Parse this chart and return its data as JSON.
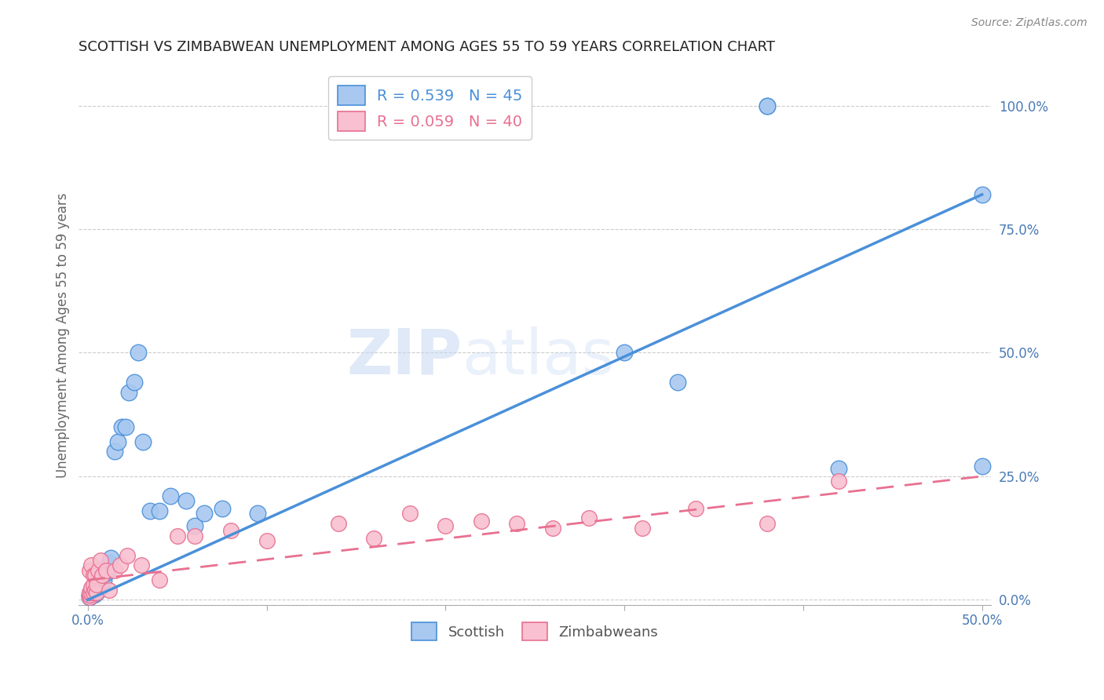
{
  "title": "SCOTTISH VS ZIMBABWEAN UNEMPLOYMENT AMONG AGES 55 TO 59 YEARS CORRELATION CHART",
  "source": "Source: ZipAtlas.com",
  "ylabel": "Unemployment Among Ages 55 to 59 years",
  "xlim": [
    -0.005,
    0.505
  ],
  "ylim": [
    -0.01,
    1.08
  ],
  "xticks": [
    0.0,
    0.1,
    0.2,
    0.3,
    0.4,
    0.5
  ],
  "xtick_labels": [
    "0.0%",
    "",
    "",
    "",
    "",
    "50.0%"
  ],
  "yticks": [
    0.0,
    0.25,
    0.5,
    0.75,
    1.0
  ],
  "ytick_labels": [
    "0.0%",
    "25.0%",
    "50.0%",
    "75.0%",
    "100.0%"
  ],
  "scottish_color": "#a8c8f0",
  "zimbabwean_color": "#f8c0d0",
  "trendline_blue": "#4a90d9",
  "trendline_pink": "#e87090",
  "watermark": "ZIPatlas",
  "watermark_color": "#b8ccec",
  "legend_r_scottish": "R = 0.539",
  "legend_n_scottish": "N = 45",
  "legend_r_zimbabwean": "R = 0.059",
  "legend_n_zimbabwean": "N = 40",
  "scottish_x": [
    0.001,
    0.001,
    0.001,
    0.002,
    0.002,
    0.002,
    0.003,
    0.003,
    0.003,
    0.004,
    0.004,
    0.005,
    0.005,
    0.006,
    0.006,
    0.007,
    0.008,
    0.009,
    0.01,
    0.011,
    0.012,
    0.013,
    0.015,
    0.017,
    0.019,
    0.021,
    0.023,
    0.026,
    0.028,
    0.031,
    0.035,
    0.04,
    0.046,
    0.055,
    0.06,
    0.065,
    0.075,
    0.095,
    0.3,
    0.33,
    0.38,
    0.38,
    0.42,
    0.5,
    0.5
  ],
  "scottish_y": [
    0.005,
    0.008,
    0.012,
    0.01,
    0.015,
    0.02,
    0.01,
    0.018,
    0.025,
    0.012,
    0.022,
    0.015,
    0.025,
    0.02,
    0.03,
    0.028,
    0.035,
    0.04,
    0.055,
    0.06,
    0.075,
    0.085,
    0.3,
    0.32,
    0.35,
    0.35,
    0.42,
    0.44,
    0.5,
    0.32,
    0.18,
    0.18,
    0.21,
    0.2,
    0.15,
    0.175,
    0.185,
    0.175,
    0.5,
    0.44,
    1.0,
    1.0,
    0.265,
    0.27,
    0.82
  ],
  "zimbabwean_x": [
    0.001,
    0.001,
    0.001,
    0.001,
    0.002,
    0.002,
    0.002,
    0.003,
    0.003,
    0.003,
    0.004,
    0.004,
    0.005,
    0.005,
    0.006,
    0.007,
    0.008,
    0.01,
    0.012,
    0.015,
    0.018,
    0.022,
    0.03,
    0.04,
    0.05,
    0.06,
    0.08,
    0.1,
    0.14,
    0.16,
    0.18,
    0.2,
    0.22,
    0.24,
    0.26,
    0.28,
    0.31,
    0.34,
    0.38,
    0.42
  ],
  "zimbabwean_y": [
    0.005,
    0.01,
    0.015,
    0.06,
    0.015,
    0.025,
    0.07,
    0.015,
    0.03,
    0.05,
    0.02,
    0.05,
    0.015,
    0.03,
    0.06,
    0.08,
    0.05,
    0.06,
    0.02,
    0.06,
    0.07,
    0.09,
    0.07,
    0.04,
    0.13,
    0.13,
    0.14,
    0.12,
    0.155,
    0.125,
    0.175,
    0.15,
    0.16,
    0.155,
    0.145,
    0.165,
    0.145,
    0.185,
    0.155,
    0.24
  ],
  "sc_trend_x": [
    0.0,
    0.5
  ],
  "sc_trend_y": [
    0.0,
    0.82
  ],
  "zim_trend_x": [
    0.0,
    0.5
  ],
  "zim_trend_y": [
    0.04,
    0.25
  ]
}
